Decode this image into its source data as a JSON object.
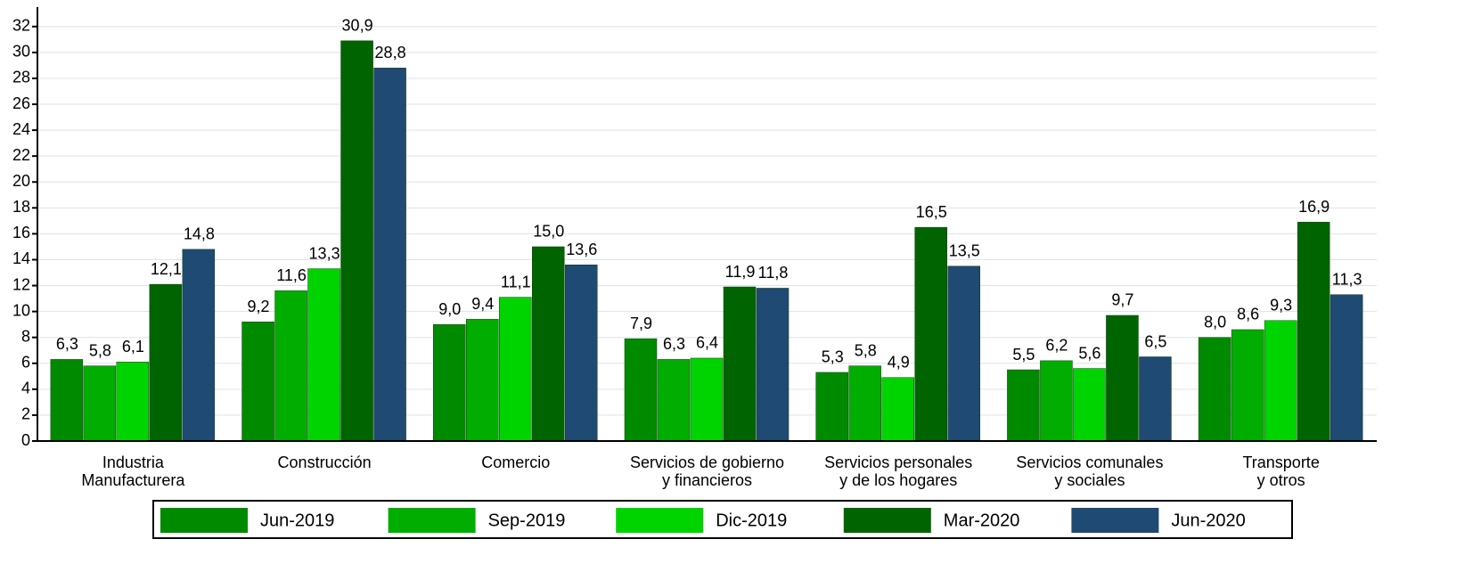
{
  "chart_data": {
    "type": "bar",
    "categories": [
      "Industria\nManufacturera",
      "Construcción",
      "Comercio",
      "Servicios de gobierno\ny financieros",
      "Servicios personales\ny de los hogares",
      "Servicios comunales\ny sociales",
      "Transporte\ny otros"
    ],
    "series": [
      {
        "name": "Jun-2019",
        "color": "#008a00",
        "values": [
          6.3,
          9.2,
          9.0,
          7.9,
          5.3,
          5.5,
          8.0
        ],
        "value_labels": [
          "6,3",
          "9,2",
          "9,0",
          "7,9",
          "5,3",
          "5,5",
          "8,0"
        ]
      },
      {
        "name": "Sep-2019",
        "color": "#00ad00",
        "values": [
          5.8,
          11.6,
          9.4,
          6.3,
          5.8,
          6.2,
          8.6
        ],
        "value_labels": [
          "5,8",
          "11,6",
          "9,4",
          "6,3",
          "5,8",
          "6,2",
          "8,6"
        ]
      },
      {
        "name": "Dic-2019",
        "color": "#00d400",
        "values": [
          6.1,
          13.3,
          11.1,
          6.4,
          4.9,
          5.6,
          9.3
        ],
        "value_labels": [
          "6,1",
          "13,3",
          "11,1",
          "6,4",
          "4,9",
          "5,6",
          "9,3"
        ]
      },
      {
        "name": "Mar-2020",
        "color": "#006400",
        "values": [
          12.1,
          30.9,
          15.0,
          11.9,
          16.5,
          9.7,
          16.9
        ],
        "value_labels": [
          "12,1",
          "30,9",
          "15,0",
          "11,9",
          "16,5",
          "9,7",
          "16,9"
        ]
      },
      {
        "name": "Jun-2020",
        "color": "#1f4a73",
        "values": [
          14.8,
          28.8,
          13.6,
          11.8,
          13.5,
          6.5,
          11.3
        ],
        "value_labels": [
          "14,8",
          "28,8",
          "13,6",
          "11,8",
          "13,5",
          "6,5",
          "11,3"
        ]
      }
    ],
    "ylim": [
      0,
      33.5
    ],
    "yticks": [
      0,
      2,
      4,
      6,
      8,
      10,
      12,
      14,
      16,
      18,
      20,
      22,
      24,
      26,
      28,
      30,
      32
    ],
    "grid": true,
    "legend": "bottom"
  }
}
